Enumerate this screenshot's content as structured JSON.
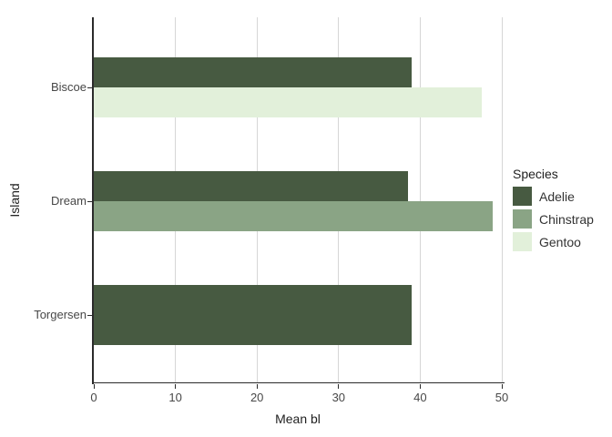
{
  "chart_data": {
    "type": "bar",
    "orientation": "horizontal",
    "title": "",
    "xlabel": "Mean bl",
    "ylabel": "Island",
    "xlim": [
      0,
      50
    ],
    "xticks": [
      0,
      10,
      20,
      30,
      40,
      50
    ],
    "grid": "vertical-major-only",
    "categories": [
      "Biscoe",
      "Dream",
      "Torgersen"
    ],
    "legend": {
      "title": "Species",
      "position": "right",
      "entries": [
        {
          "label": "Adelie",
          "color": "#475a41"
        },
        {
          "label": "Chinstrap",
          "color": "#8aa485"
        },
        {
          "label": "Gentoo",
          "color": "#e2f0da"
        }
      ]
    },
    "bars": [
      {
        "category": "Biscoe",
        "series": "Adelie",
        "value": 38.98
      },
      {
        "category": "Biscoe",
        "series": "Gentoo",
        "value": 47.5
      },
      {
        "category": "Dream",
        "series": "Adelie",
        "value": 38.5
      },
      {
        "category": "Dream",
        "series": "Chinstrap",
        "value": 48.83
      },
      {
        "category": "Torgersen",
        "series": "Adelie",
        "value": 38.95
      }
    ],
    "colors": {
      "background": "#ffffff",
      "gridline": "#d6d6d6",
      "axis_line": "#2b2b2b",
      "axis_text": "#474747",
      "title_text": "#1f1f1f"
    }
  }
}
